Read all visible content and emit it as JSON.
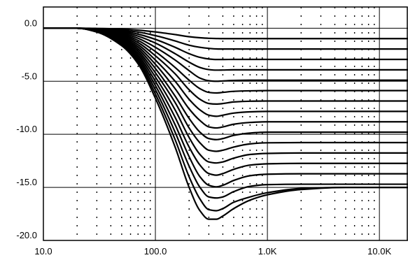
{
  "chart_data": {
    "type": "line",
    "x_scale": "log",
    "xlim": [
      10,
      18000
    ],
    "ylim": [
      -20,
      2
    ],
    "y_ticks": [
      {
        "value": 0,
        "label": "0.0"
      },
      {
        "value": -5,
        "label": "-5.0"
      },
      {
        "value": -10,
        "label": "-10.0"
      },
      {
        "value": -15,
        "label": "-15.0"
      },
      {
        "value": -20,
        "label": "-20.0"
      }
    ],
    "x_ticks": [
      {
        "value": 10,
        "label": "10.0"
      },
      {
        "value": 100,
        "label": "100.0"
      },
      {
        "value": 1000,
        "label": "1.0K"
      },
      {
        "value": 10000,
        "label": "10.0K"
      }
    ],
    "grid": true,
    "legend": "none",
    "line_color": "#000000",
    "x": [
      10,
      20,
      30,
      50,
      70,
      100,
      150,
      200,
      250,
      300,
      350,
      400,
      500,
      700,
      1000,
      2000,
      5000,
      10000,
      18000
    ],
    "series": [
      {
        "values": [
          0,
          0,
          -0.02,
          -0.08,
          -0.18,
          -0.35,
          -0.6,
          -0.8,
          -0.9,
          -0.95,
          -0.97,
          -0.98,
          -0.98,
          -0.98,
          -0.98,
          -0.98,
          -0.98,
          -0.98,
          -0.98
        ]
      },
      {
        "values": [
          0,
          0,
          -0.05,
          -0.18,
          -0.36,
          -0.7,
          -1.2,
          -1.6,
          -1.8,
          -1.9,
          -1.95,
          -1.96,
          -1.96,
          -1.96,
          -1.96,
          -1.96,
          -1.96,
          -1.96,
          -1.96
        ]
      },
      {
        "values": [
          0,
          0,
          -0.07,
          -0.27,
          -0.56,
          -1.05,
          -1.8,
          -2.4,
          -2.75,
          -2.9,
          -2.95,
          -2.95,
          -2.94,
          -2.94,
          -2.94,
          -2.94,
          -2.94,
          -2.94,
          -2.94
        ]
      },
      {
        "values": [
          0,
          0,
          -0.1,
          -0.35,
          -0.75,
          -1.4,
          -2.4,
          -3.2,
          -3.7,
          -3.9,
          -3.95,
          -3.94,
          -3.92,
          -3.92,
          -3.92,
          -3.92,
          -3.92,
          -3.92,
          -3.92
        ]
      },
      {
        "values": [
          0,
          0,
          -0.12,
          -0.45,
          -0.95,
          -1.8,
          -3.0,
          -4.0,
          -4.7,
          -4.95,
          -5.0,
          -4.97,
          -4.92,
          -4.9,
          -4.9,
          -4.9,
          -4.9,
          -4.9,
          -4.9
        ]
      },
      {
        "values": [
          0,
          0,
          -0.14,
          -0.55,
          -1.15,
          -2.2,
          -3.7,
          -4.9,
          -5.7,
          -6.05,
          -6.1,
          -6.05,
          -5.95,
          -5.9,
          -5.88,
          -5.88,
          -5.88,
          -5.88,
          -5.88
        ]
      },
      {
        "values": [
          0,
          0,
          -0.16,
          -0.65,
          -1.35,
          -2.6,
          -4.3,
          -5.8,
          -6.7,
          -7.1,
          -7.15,
          -7.1,
          -6.95,
          -6.88,
          -6.86,
          -6.86,
          -6.86,
          -6.86,
          -6.86
        ]
      },
      {
        "values": [
          0,
          0,
          -0.18,
          -0.75,
          -1.55,
          -3.0,
          -5.0,
          -6.7,
          -7.7,
          -8.2,
          -8.3,
          -8.2,
          -8.0,
          -7.88,
          -7.84,
          -7.84,
          -7.84,
          -7.84,
          -7.84
        ]
      },
      {
        "values": [
          0,
          0,
          -0.2,
          -0.85,
          -1.75,
          -3.4,
          -5.7,
          -7.6,
          -8.7,
          -9.3,
          -9.4,
          -9.3,
          -9.05,
          -8.88,
          -8.82,
          -8.82,
          -8.82,
          -8.82,
          -8.82
        ]
      },
      {
        "values": [
          0,
          0,
          -0.22,
          -0.95,
          -1.95,
          -3.8,
          -6.4,
          -8.5,
          -9.8,
          -10.4,
          -10.5,
          -10.4,
          -10.1,
          -9.88,
          -9.8,
          -9.8,
          -9.8,
          -9.8,
          -9.8
        ]
      },
      {
        "values": [
          0,
          0,
          -0.24,
          -1.05,
          -2.15,
          -4.2,
          -7.0,
          -9.4,
          -10.8,
          -11.5,
          -11.6,
          -11.5,
          -11.2,
          -10.9,
          -10.8,
          -10.78,
          -10.78,
          -10.78,
          -10.78
        ]
      },
      {
        "values": [
          0,
          0,
          -0.26,
          -1.15,
          -2.35,
          -4.6,
          -7.7,
          -10.3,
          -11.9,
          -12.6,
          -12.7,
          -12.6,
          -12.25,
          -11.9,
          -11.8,
          -11.76,
          -11.76,
          -11.76,
          -11.76
        ]
      },
      {
        "values": [
          0,
          0,
          -0.28,
          -1.25,
          -2.55,
          -5.0,
          -8.4,
          -11.2,
          -12.9,
          -13.7,
          -13.85,
          -13.7,
          -13.3,
          -12.9,
          -12.78,
          -12.74,
          -12.74,
          -12.74,
          -12.74
        ]
      },
      {
        "values": [
          0,
          0,
          -0.3,
          -1.35,
          -2.75,
          -5.4,
          -9.1,
          -12.1,
          -14.0,
          -14.8,
          -14.95,
          -14.8,
          -14.35,
          -13.9,
          -13.76,
          -13.72,
          -13.72,
          -13.72,
          -13.72
        ]
      },
      {
        "values": [
          0,
          0,
          -0.32,
          -1.45,
          -2.95,
          -5.8,
          -9.8,
          -13.0,
          -15.0,
          -15.9,
          -16.0,
          -15.9,
          -15.4,
          -14.9,
          -14.74,
          -14.7,
          -14.7,
          -14.7,
          -14.7
        ]
      },
      {
        "values": [
          0,
          0,
          -0.34,
          -1.55,
          -3.15,
          -6.2,
          -10.5,
          -14.0,
          -16.1,
          -17.1,
          -17.2,
          -17.0,
          -16.4,
          -15.9,
          -15.5,
          -15.1,
          -15.0,
          -15.0,
          -15.0
        ]
      },
      {
        "values": [
          0,
          0,
          -0.36,
          -1.65,
          -3.35,
          -6.6,
          -11.2,
          -15.0,
          -17.2,
          -18.0,
          -18.0,
          -17.7,
          -17.0,
          -16.2,
          -15.7,
          -15.2,
          -15.0,
          -15.0,
          -15.0
        ]
      }
    ]
  }
}
